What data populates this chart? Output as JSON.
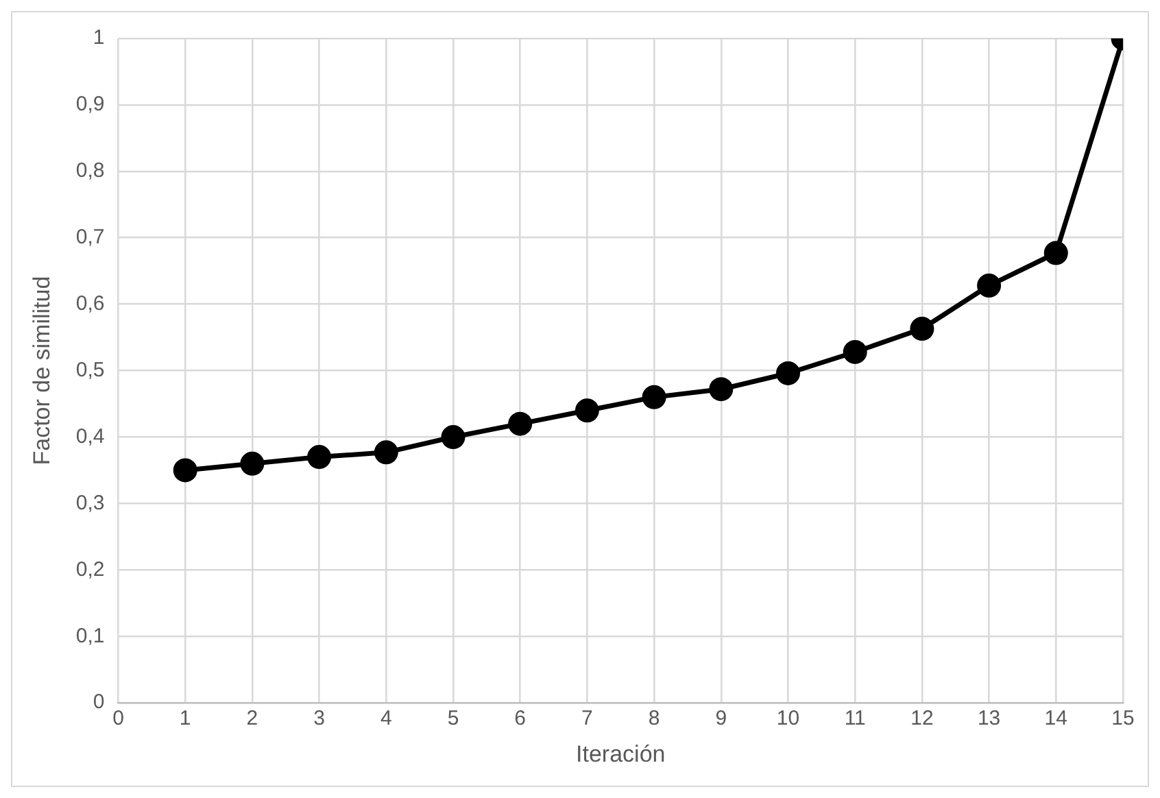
{
  "chart_data": {
    "type": "line",
    "xlabel": "Iteración",
    "ylabel": "Factor de similitud",
    "x": [
      1,
      2,
      3,
      4,
      5,
      6,
      7,
      8,
      9,
      10,
      11,
      12,
      13,
      14,
      15
    ],
    "series": [
      {
        "color": "#000000",
        "values": [
          0.35,
          0.36,
          0.37,
          0.377,
          0.4,
          0.42,
          0.44,
          0.46,
          0.472,
          0.496,
          0.528,
          0.563,
          0.628,
          0.677,
          1.0
        ]
      }
    ],
    "xlim": [
      0,
      15
    ],
    "xticks": [
      0,
      1,
      2,
      3,
      4,
      5,
      6,
      7,
      8,
      9,
      10,
      11,
      12,
      13,
      14,
      15
    ],
    "ylim": [
      0,
      1
    ],
    "yticks": [
      0,
      {
        "value": 0.1,
        "label": "0,1"
      },
      {
        "value": 0.2,
        "label": "0,2"
      },
      {
        "value": 0.3,
        "label": "0,3"
      },
      {
        "value": 0.4,
        "label": "0,4"
      },
      {
        "value": 0.5,
        "label": "0,5"
      },
      {
        "value": 0.6,
        "label": "0,6"
      },
      {
        "value": 0.7,
        "label": "0,7"
      },
      {
        "value": 0.8,
        "label": "0,8"
      },
      {
        "value": 0.9,
        "label": "0,9"
      },
      1
    ],
    "grid": true,
    "legend": false,
    "marker": "circle",
    "line_style": "solid"
  }
}
